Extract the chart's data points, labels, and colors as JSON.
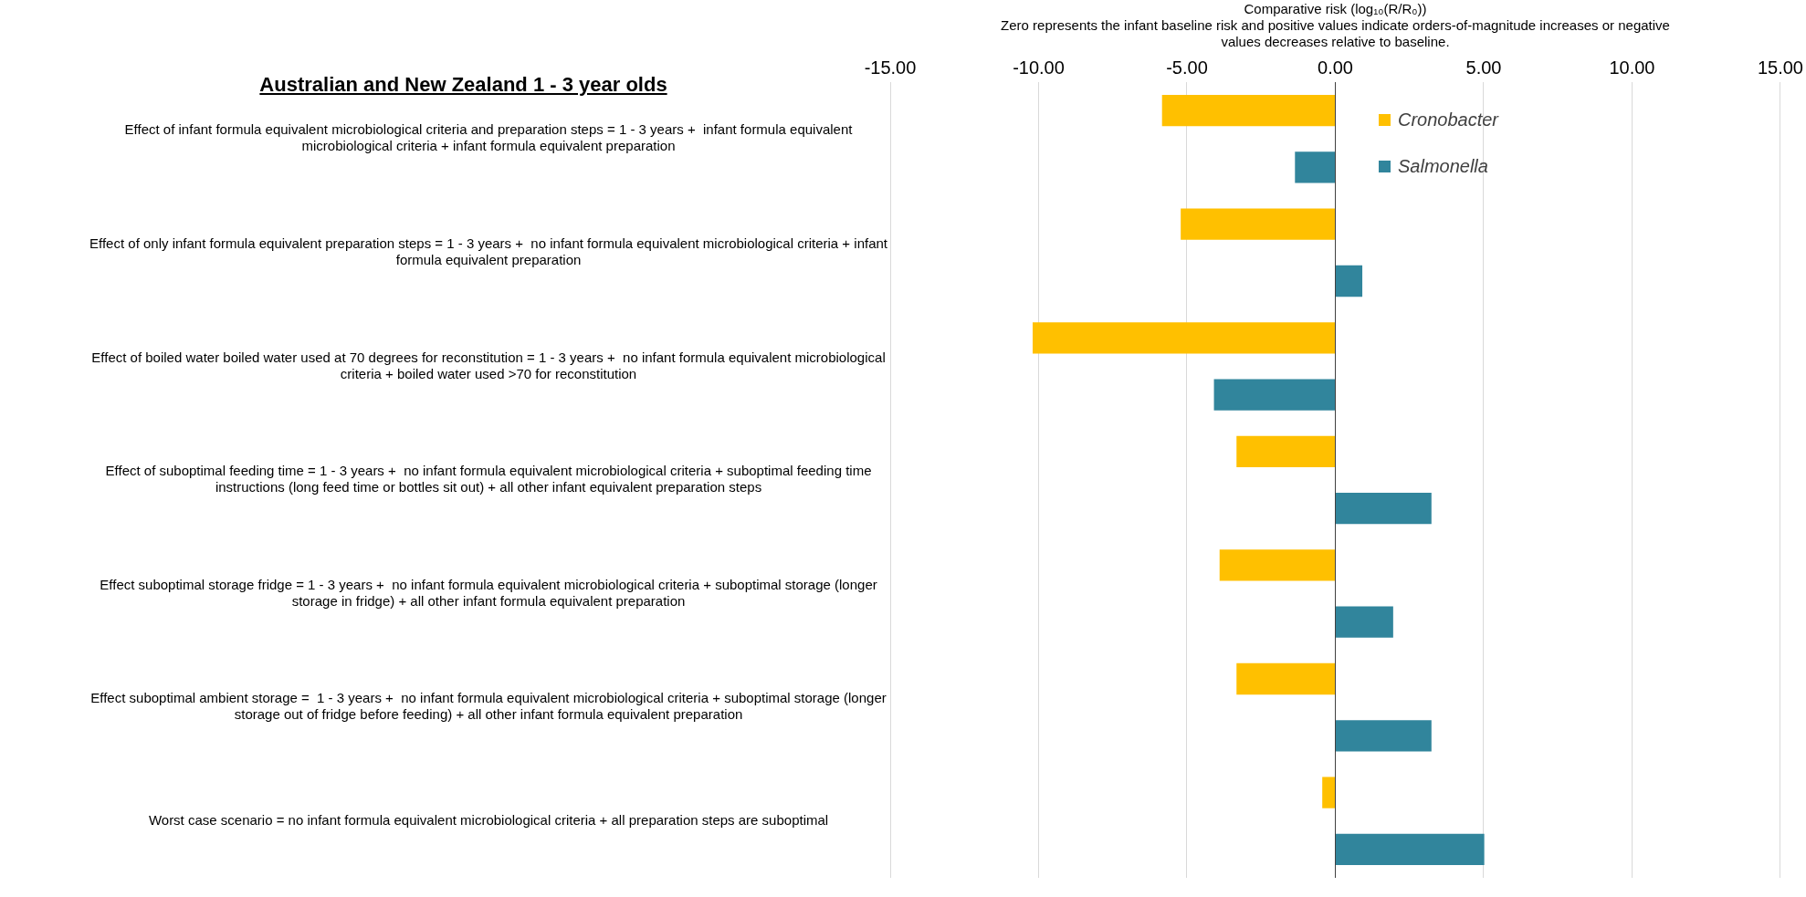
{
  "chart_data": {
    "type": "bar",
    "orientation": "horizontal",
    "title": "Australian and New Zealand 1 - 3 year olds",
    "xlabel": "Comparative risk (log₁₀(R/R₀))",
    "annotations": [
      "Zero represents the infant baseline risk and positive values indicate orders-of-magnitude increases or negative values decreases relative to baseline."
    ],
    "categories": [
      "Effect of infant formula equivalent microbiological criteria and preparation steps = 1 - 3 years +  infant formula equivalent microbiological criteria + infant formula equivalent preparation",
      "Effect of only infant formula equivalent preparation steps = 1 - 3 years +  no infant formula equivalent microbiological criteria + infant formula equivalent preparation",
      "Effect of boiled water boiled water used at 70 degrees for reconstitution = 1 - 3 years +  no infant formula equivalent microbiological criteria + boiled water used >70 for reconstitution",
      "Effect of suboptimal feeding time = 1 - 3 years +  no infant formula equivalent microbiological criteria + suboptimal feeding time instructions (long feed time or bottles sit out) + all other infant equivalent preparation steps",
      "Effect suboptimal storage fridge = 1 - 3 years +  no infant formula equivalent microbiological criteria + suboptimal storage (longer storage in fridge) + all other infant formula equivalent preparation",
      "Effect suboptimal ambient storage =  1 - 3 years +  no infant formula equivalent microbiological criteria + suboptimal storage (longer storage out of fridge before feeding) + all other infant formula equivalent preparation",
      "Worst case scenario = no infant formula equivalent microbiological criteria + all preparation steps are suboptimal"
    ],
    "series": [
      {
        "name": "Cronobacter",
        "color": "#ffc000",
        "values": [
          -5.84,
          -5.21,
          -10.2,
          -3.33,
          -3.9,
          -3.33,
          -0.44
        ]
      },
      {
        "name": "Salmonella",
        "color": "#31859c",
        "values": [
          -1.36,
          0.91,
          -4.09,
          3.24,
          1.95,
          3.24,
          5.02
        ]
      }
    ],
    "xlim": [
      -15,
      15
    ],
    "xticks": [
      {
        "value": -15,
        "label": "-15.00"
      },
      {
        "value": -10,
        "label": "-10.00"
      },
      {
        "value": -5,
        "label": "-5.00"
      },
      {
        "value": 0,
        "label": "0.00"
      },
      {
        "value": 5,
        "label": "5.00"
      },
      {
        "value": 10,
        "label": "10.00"
      },
      {
        "value": 15,
        "label": "15.00"
      }
    ],
    "grid": "x",
    "legend": "top right"
  }
}
